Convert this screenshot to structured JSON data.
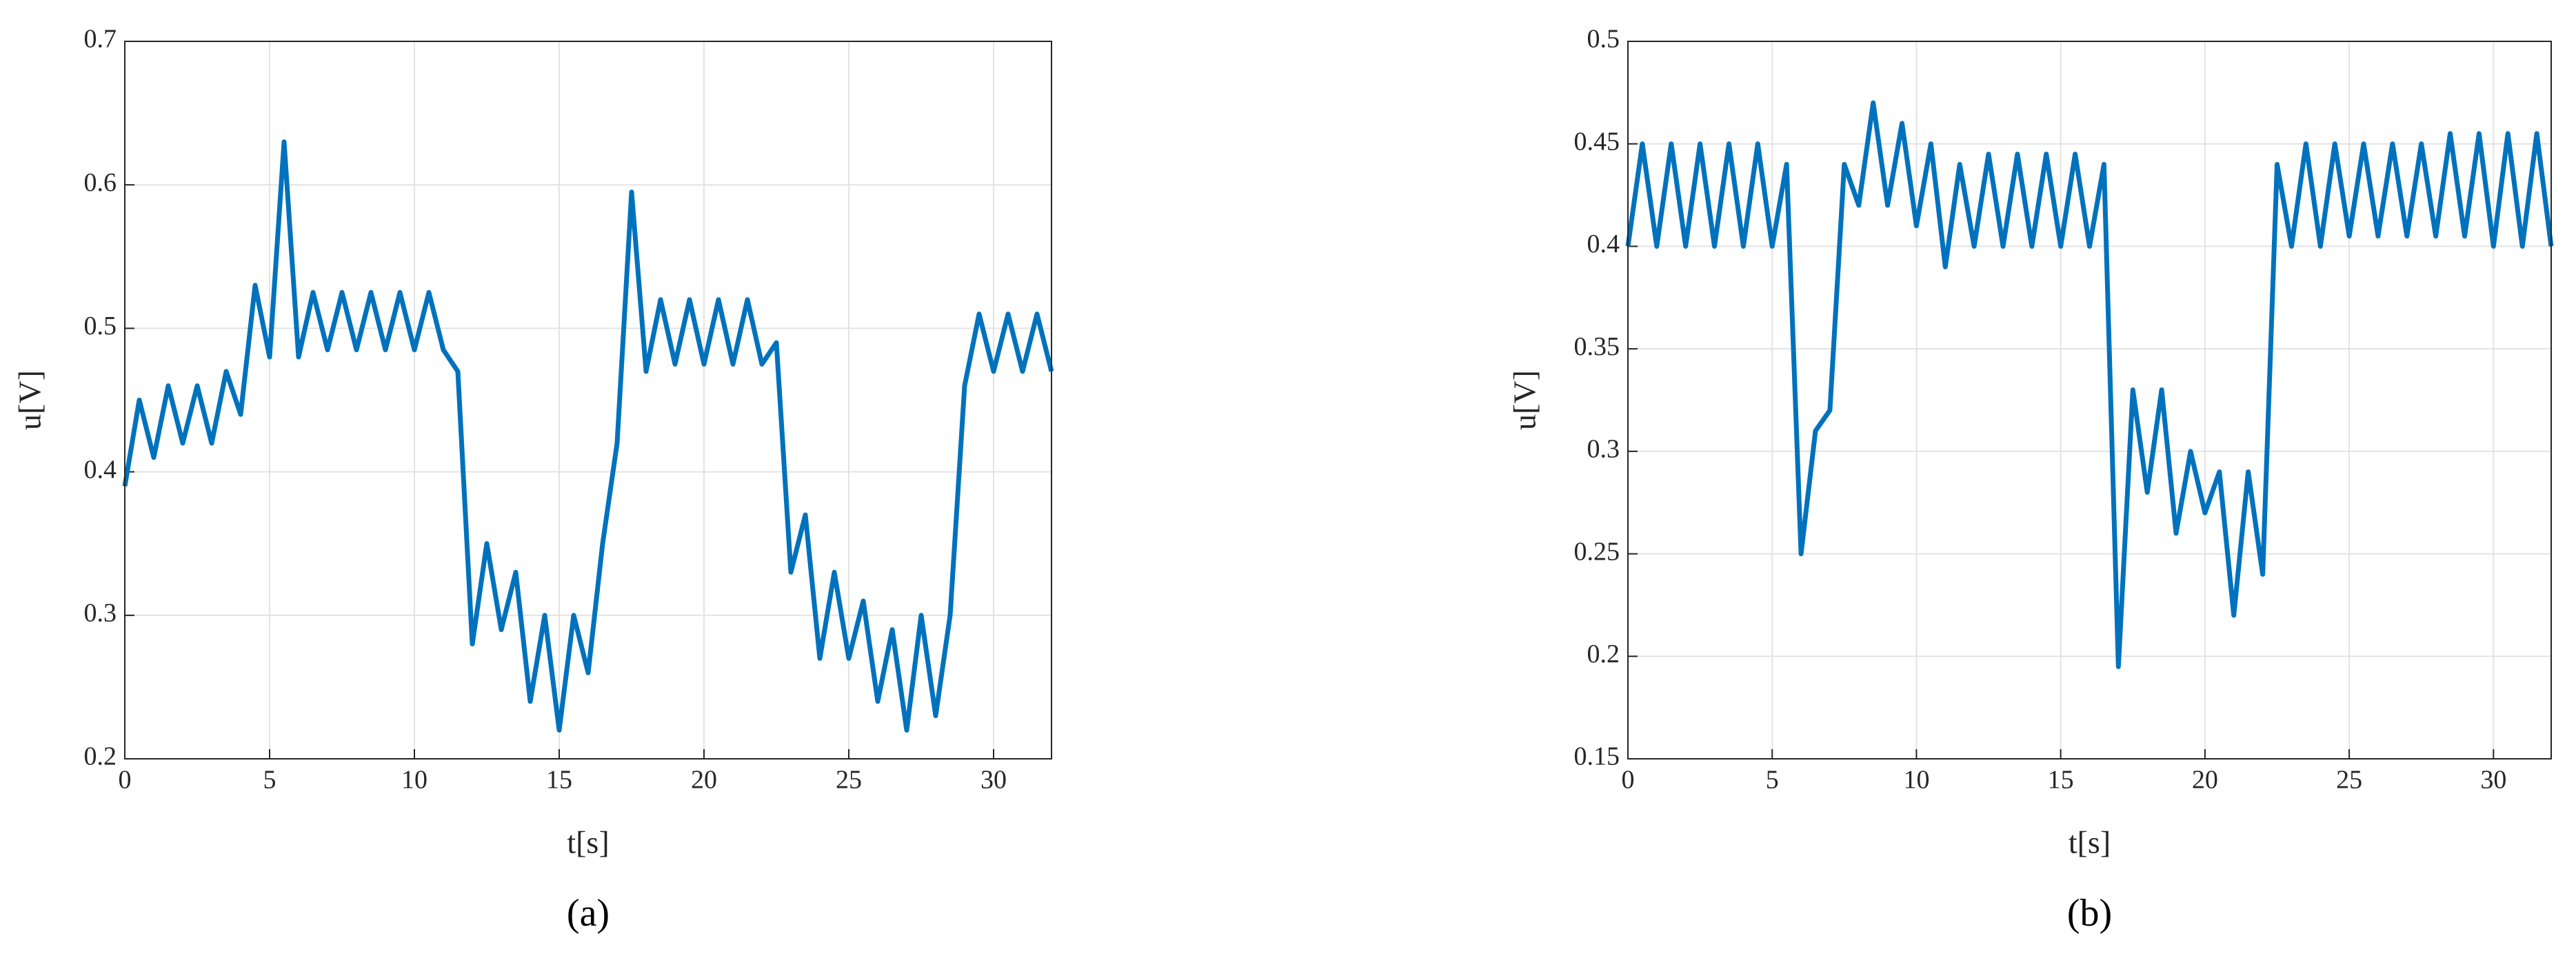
{
  "chart_data": [
    {
      "type": "line",
      "caption": "(a)",
      "x_label": "t[s]",
      "y_label": "u[V]",
      "color": "#0072bd",
      "grid": true,
      "x": [
        0,
        0.5,
        1,
        1.5,
        2,
        2.5,
        3,
        3.5,
        4,
        4.5,
        5,
        5.5,
        6,
        6.5,
        7,
        7.5,
        8,
        8.5,
        9,
        9.5,
        10,
        10.5,
        11,
        11.5,
        12,
        12.5,
        13,
        13.5,
        14,
        14.5,
        15,
        15.5,
        16,
        16.5,
        17,
        17.5,
        18,
        18.5,
        19,
        19.5,
        20,
        20.5,
        21,
        21.5,
        22,
        22.5,
        23,
        23.5,
        24,
        24.5,
        25,
        25.5,
        26,
        26.5,
        27,
        27.5,
        28,
        28.5,
        29,
        29.5,
        30,
        30.5,
        31,
        31.5,
        32
      ],
      "values": [
        0.39,
        0.45,
        0.41,
        0.46,
        0.42,
        0.46,
        0.42,
        0.47,
        0.44,
        0.53,
        0.48,
        0.63,
        0.48,
        0.525,
        0.485,
        0.525,
        0.485,
        0.525,
        0.485,
        0.525,
        0.485,
        0.525,
        0.485,
        0.47,
        0.28,
        0.35,
        0.29,
        0.33,
        0.24,
        0.3,
        0.22,
        0.3,
        0.26,
        0.35,
        0.42,
        0.595,
        0.47,
        0.52,
        0.475,
        0.52,
        0.475,
        0.52,
        0.475,
        0.52,
        0.475,
        0.49,
        0.33,
        0.37,
        0.27,
        0.33,
        0.27,
        0.31,
        0.24,
        0.29,
        0.22,
        0.3,
        0.23,
        0.3,
        0.46,
        0.51,
        0.47,
        0.51,
        0.47,
        0.51,
        0.47
      ],
      "xlim": [
        0,
        32
      ],
      "xticks": [
        0,
        5,
        10,
        15,
        20,
        25,
        30
      ],
      "ylim": [
        0.2,
        0.7
      ],
      "yticks": [
        0.2,
        0.3,
        0.4,
        0.5,
        0.6,
        0.7
      ]
    },
    {
      "type": "line",
      "caption": "(b)",
      "x_label": "t[s]",
      "y_label": "u[V]",
      "color": "#0072bd",
      "grid": true,
      "x": [
        0,
        0.5,
        1,
        1.5,
        2,
        2.5,
        3,
        3.5,
        4,
        4.5,
        5,
        5.5,
        6,
        6.5,
        7,
        7.5,
        8,
        8.5,
        9,
        9.5,
        10,
        10.5,
        11,
        11.5,
        12,
        12.5,
        13,
        13.5,
        14,
        14.5,
        15,
        15.5,
        16,
        16.5,
        17,
        17.5,
        18,
        18.5,
        19,
        19.5,
        20,
        20.5,
        21,
        21.5,
        22,
        22.5,
        23,
        23.5,
        24,
        24.5,
        25,
        25.5,
        26,
        26.5,
        27,
        27.5,
        28,
        28.5,
        29,
        29.5,
        30,
        30.5,
        31,
        31.5,
        32
      ],
      "values": [
        0.4,
        0.45,
        0.4,
        0.45,
        0.4,
        0.45,
        0.4,
        0.45,
        0.4,
        0.45,
        0.4,
        0.44,
        0.25,
        0.31,
        0.32,
        0.44,
        0.42,
        0.47,
        0.42,
        0.46,
        0.41,
        0.45,
        0.39,
        0.44,
        0.4,
        0.445,
        0.4,
        0.445,
        0.4,
        0.445,
        0.4,
        0.445,
        0.4,
        0.44,
        0.195,
        0.33,
        0.28,
        0.33,
        0.26,
        0.3,
        0.27,
        0.29,
        0.22,
        0.29,
        0.24,
        0.44,
        0.4,
        0.45,
        0.4,
        0.45,
        0.405,
        0.45,
        0.405,
        0.45,
        0.405,
        0.45,
        0.405,
        0.455,
        0.405,
        0.455,
        0.4,
        0.455,
        0.4,
        0.455,
        0.4
      ],
      "xlim": [
        0,
        32
      ],
      "xticks": [
        0,
        5,
        10,
        15,
        20,
        25,
        30
      ],
      "ylim": [
        0.15,
        0.5
      ],
      "yticks": [
        0.15,
        0.2,
        0.25,
        0.3,
        0.35,
        0.4,
        0.45,
        0.5
      ]
    }
  ]
}
